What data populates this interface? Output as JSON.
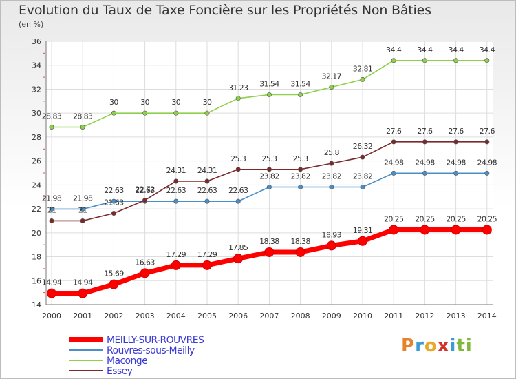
{
  "title": "Evolution du Taux de Taxe Foncière sur les Propriétés Non Bâties",
  "unit_label": "(en %)",
  "logo": {
    "letters": [
      "P",
      "r",
      "o",
      "x",
      "i",
      "t",
      "i"
    ],
    "colors": [
      "#e8822a",
      "#3b9bd6",
      "#e8a92a",
      "#d2332a",
      "#3b9bd6",
      "#7fb83a",
      "#7fb83a"
    ]
  },
  "chart_data": {
    "type": "line",
    "title": "Evolution du Taux de Taxe Foncière sur les Propriétés Non Bâties",
    "ylabel": "(en %)",
    "xlabel": "",
    "ylim": [
      14,
      36
    ],
    "yticks": [
      14,
      16,
      18,
      20,
      22,
      24,
      26,
      28,
      30,
      32,
      34,
      36
    ],
    "grid": true,
    "legend_placement": "bottom-left",
    "x": [
      "2000",
      "2001",
      "2002",
      "2003",
      "2004",
      "2005",
      "2006",
      "2007",
      "2008",
      "2009",
      "2010",
      "2011",
      "2012",
      "2013",
      "2014"
    ],
    "series": [
      {
        "name": "MEILLY-SUR-ROUVRES",
        "color": "#ff0000",
        "values": [
          14.94,
          14.94,
          15.69,
          16.63,
          17.29,
          17.29,
          17.85,
          18.38,
          18.38,
          18.93,
          19.31,
          20.25,
          20.25,
          20.25,
          20.25
        ],
        "labels": [
          "14.94",
          "14.94",
          "15.69",
          "16.63",
          "17.29",
          "17.29",
          "17.85",
          "18.38",
          "18.38",
          "18.93",
          "19.31",
          "20.25",
          "20.25",
          "20.25",
          "20.25"
        ]
      },
      {
        "name": "Rouvres-sous-Meilly",
        "color": "#4a8fc7",
        "values": [
          21.98,
          21.98,
          22.63,
          22.63,
          22.63,
          22.63,
          22.63,
          23.82,
          23.82,
          23.82,
          23.82,
          24.98,
          24.98,
          24.98,
          24.98
        ],
        "labels": [
          "21.98",
          "21.98",
          "22.63",
          "22.63",
          "22.63",
          "22.63",
          "22.63",
          "23.82",
          "23.82",
          "23.82",
          "23.82",
          "24.98",
          "24.98",
          "24.98",
          "24.98"
        ]
      },
      {
        "name": "Maconge",
        "color": "#8ed04a",
        "values": [
          28.83,
          28.83,
          30,
          30,
          30,
          30,
          31.23,
          31.54,
          31.54,
          32.17,
          32.81,
          34.4,
          34.4,
          34.4,
          34.4
        ],
        "labels": [
          "28.83",
          "28.83",
          "30",
          "30",
          "30",
          "30",
          "31.23",
          "31.54",
          "31.54",
          "32.17",
          "32.81",
          "34.4",
          "34.4",
          "34.4",
          "34.4"
        ]
      },
      {
        "name": "Essey",
        "color": "#7a2a2a",
        "values": [
          21,
          21,
          21.63,
          22.72,
          24.31,
          24.31,
          25.3,
          25.3,
          25.3,
          25.8,
          26.32,
          27.6,
          27.6,
          27.6,
          27.6
        ],
        "labels": [
          "21",
          "21",
          "21.63",
          "22.72",
          "24.31",
          "24.31",
          "25.3",
          "25.3",
          "25.3",
          "25.8",
          "26.32",
          "27.6",
          "27.6",
          "27.6",
          "27.6"
        ]
      }
    ]
  }
}
